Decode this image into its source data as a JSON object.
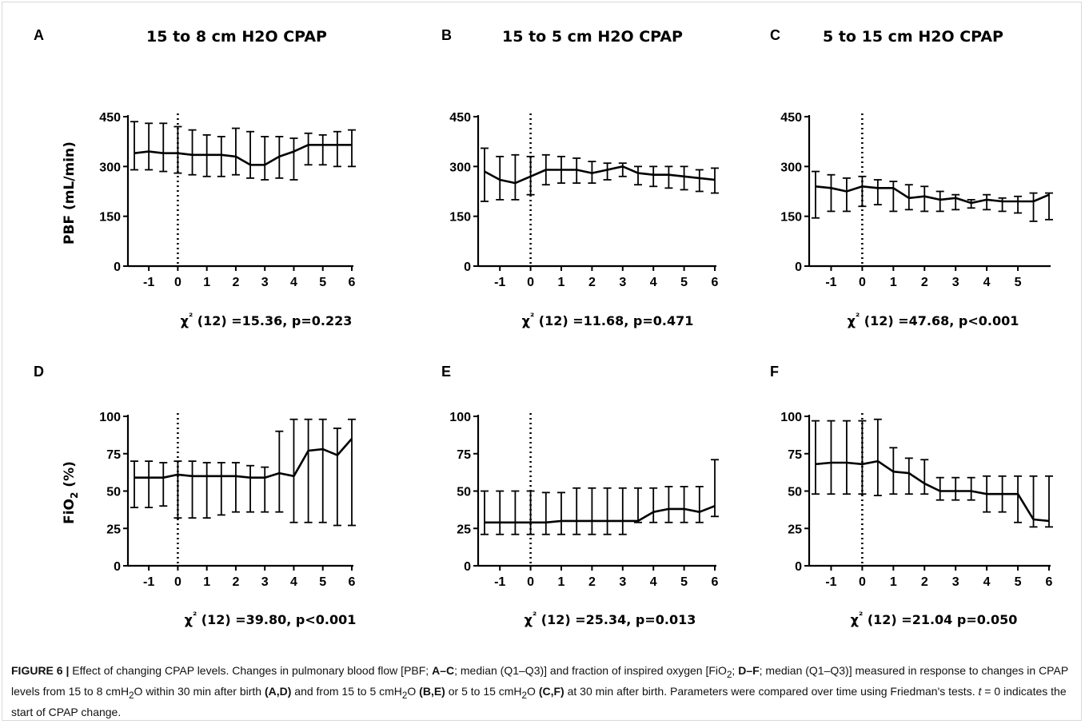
{
  "chart_data": [
    {
      "type": "line",
      "panel": "A",
      "title": "15 to 8 cm H2O CPAP",
      "ylabel": "PBF (mL/min)",
      "ylabel_sub": "",
      "ylabel_tail": "",
      "xlabel": "",
      "stat": "χ² (12) =15.36, p=0.223",
      "ylim": [
        0,
        450
      ],
      "yticks": [
        0,
        150,
        300,
        450
      ],
      "xticks": [
        -1,
        0,
        1,
        2,
        3,
        4,
        5,
        6
      ],
      "xlim": [
        -1.5,
        6
      ],
      "x": [
        -1.5,
        -1,
        -0.5,
        0,
        0.5,
        1,
        1.5,
        2,
        2.5,
        3,
        3.5,
        4,
        4.5,
        5,
        5.5,
        6
      ],
      "median": [
        340,
        345,
        340,
        340,
        335,
        335,
        335,
        330,
        305,
        305,
        330,
        345,
        365,
        365,
        365,
        365
      ],
      "q1": [
        290,
        290,
        285,
        280,
        275,
        270,
        270,
        275,
        265,
        260,
        265,
        260,
        305,
        305,
        300,
        300
      ],
      "q3": [
        435,
        430,
        430,
        420,
        410,
        395,
        390,
        415,
        405,
        390,
        390,
        385,
        400,
        395,
        405,
        410
      ],
      "vline_x": 0,
      "grid": false
    },
    {
      "type": "line",
      "panel": "B",
      "title": "15 to 5 cm H2O CPAP",
      "ylabel": "",
      "ylabel_sub": "",
      "ylabel_tail": "",
      "xlabel": "",
      "stat": "χ² (12) =11.68, p=0.471",
      "ylim": [
        0,
        450
      ],
      "yticks": [
        0,
        150,
        300,
        450
      ],
      "xticks": [
        -1,
        0,
        1,
        2,
        3,
        4,
        5,
        6
      ],
      "xlim": [
        -1.5,
        6
      ],
      "x": [
        -1.5,
        -1,
        -0.5,
        0,
        0.5,
        1,
        1.5,
        2,
        2.5,
        3,
        3.5,
        4,
        4.5,
        5,
        5.5,
        6
      ],
      "median": [
        285,
        260,
        250,
        270,
        290,
        290,
        290,
        280,
        290,
        300,
        280,
        275,
        275,
        270,
        265,
        260
      ],
      "q1": [
        195,
        200,
        200,
        215,
        245,
        250,
        250,
        250,
        260,
        270,
        245,
        240,
        235,
        230,
        225,
        220
      ],
      "q3": [
        355,
        330,
        335,
        330,
        335,
        330,
        325,
        315,
        310,
        310,
        300,
        300,
        300,
        300,
        290,
        295
      ],
      "vline_x": 0,
      "grid": false
    },
    {
      "type": "line",
      "panel": "C",
      "title": "5 to 15 cm H2O CPAP",
      "ylabel": "",
      "ylabel_sub": "",
      "ylabel_tail": "",
      "xlabel": "",
      "stat": "χ² (12) =47.68, p<0.001",
      "ylim": [
        0,
        450
      ],
      "yticks": [
        0,
        150,
        300,
        450
      ],
      "xticks": [
        -1,
        0,
        1,
        2,
        3,
        4,
        5
      ],
      "xlim": [
        -1.5,
        6
      ],
      "x": [
        -1.5,
        -1,
        -0.5,
        0,
        0.5,
        1,
        1.5,
        2,
        2.5,
        3,
        3.5,
        4,
        4.5,
        5,
        5.5,
        6
      ],
      "median": [
        240,
        235,
        225,
        240,
        235,
        235,
        205,
        210,
        200,
        205,
        190,
        200,
        195,
        195,
        195,
        215
      ],
      "q1": [
        145,
        165,
        165,
        180,
        185,
        165,
        170,
        165,
        165,
        170,
        175,
        170,
        165,
        160,
        135,
        140
      ],
      "q3": [
        285,
        275,
        265,
        270,
        260,
        255,
        245,
        240,
        225,
        215,
        200,
        215,
        205,
        210,
        220,
        220
      ],
      "vline_x": 0,
      "grid": false
    },
    {
      "type": "line",
      "panel": "D",
      "title": "",
      "ylabel": "FiO",
      "ylabel_sub": "2",
      "ylabel_tail": " (%)",
      "xlabel": "",
      "stat": "χ² (12) =39.80, p<0.001",
      "ylim": [
        0,
        100
      ],
      "yticks": [
        0,
        25,
        50,
        75,
        100
      ],
      "xticks": [
        -1,
        0,
        1,
        2,
        3,
        4,
        5,
        6
      ],
      "xlim": [
        -1.5,
        6
      ],
      "x": [
        -1.5,
        -1,
        -0.5,
        0,
        0.5,
        1,
        1.5,
        2,
        2.5,
        3,
        3.5,
        4,
        4.5,
        5,
        5.5,
        6
      ],
      "median": [
        59,
        59,
        59,
        61,
        60,
        60,
        60,
        60,
        59,
        59,
        62,
        60,
        77,
        78,
        74,
        85
      ],
      "q1": [
        39,
        39,
        40,
        32,
        32,
        32,
        34,
        36,
        36,
        36,
        36,
        29,
        29,
        29,
        27,
        27
      ],
      "q3": [
        70,
        70,
        69,
        70,
        70,
        69,
        69,
        69,
        67,
        66,
        90,
        98,
        98,
        98,
        92,
        98
      ],
      "vline_x": 0,
      "grid": false
    },
    {
      "type": "line",
      "panel": "E",
      "title": "",
      "ylabel": "",
      "ylabel_sub": "",
      "ylabel_tail": "",
      "xlabel": "",
      "stat": "χ² (12) =25.34, p=0.013",
      "ylim": [
        0,
        100
      ],
      "yticks": [
        0,
        25,
        50,
        75,
        100
      ],
      "xticks": [
        -1,
        0,
        1,
        2,
        3,
        4,
        5,
        6
      ],
      "xlim": [
        -1.5,
        6
      ],
      "x": [
        -1.5,
        -1,
        -0.5,
        0,
        0.5,
        1,
        1.5,
        2,
        2.5,
        3,
        3.5,
        4,
        4.5,
        5,
        5.5,
        6
      ],
      "median": [
        29,
        29,
        29,
        29,
        29,
        30,
        30,
        30,
        30,
        30,
        30,
        36,
        38,
        38,
        36,
        40
      ],
      "q1": [
        21,
        21,
        21,
        21,
        21,
        21,
        21,
        21,
        21,
        21,
        29,
        29,
        29,
        29,
        29,
        33
      ],
      "q3": [
        50,
        50,
        50,
        50,
        49,
        49,
        52,
        52,
        52,
        52,
        52,
        52,
        53,
        53,
        53,
        71
      ],
      "vline_x": 0,
      "grid": false
    },
    {
      "type": "line",
      "panel": "F",
      "title": "",
      "ylabel": "",
      "ylabel_sub": "",
      "ylabel_tail": "",
      "xlabel": "",
      "stat": "χ² (12) =21.04 p=0.050",
      "ylim": [
        0,
        100
      ],
      "yticks": [
        0,
        25,
        50,
        75,
        100
      ],
      "xticks": [
        -1,
        0,
        1,
        2,
        3,
        4,
        5,
        6
      ],
      "xlim": [
        -1.5,
        6
      ],
      "x": [
        -1.5,
        -1,
        -0.5,
        0,
        0.5,
        1,
        1.5,
        2,
        2.5,
        3,
        3.5,
        4,
        4.5,
        5,
        5.5,
        6
      ],
      "median": [
        68,
        69,
        69,
        68,
        70,
        63,
        62,
        55,
        50,
        50,
        50,
        48,
        48,
        48,
        31,
        30
      ],
      "q1": [
        48,
        48,
        48,
        48,
        47,
        48,
        48,
        48,
        44,
        44,
        44,
        36,
        36,
        29,
        26,
        26
      ],
      "q3": [
        97,
        97,
        97,
        97,
        98,
        79,
        72,
        71,
        59,
        59,
        59,
        60,
        60,
        60,
        60,
        60
      ],
      "vline_x": 0,
      "grid": false
    }
  ],
  "caption": {
    "label": "FIGURE 6 |",
    "text_1": " Effect of changing CPAP levels. Changes in pulmonary blood flow [PBF; ",
    "ref_1": "A–C",
    "text_2": "; median (Q1–Q3)] and fraction of inspired oxygen [FiO",
    "sub_1": "2",
    "text_3": "; ",
    "ref_2": "D–F",
    "text_4": "; median (Q1–Q3)] measured in response to changes in CPAP levels from 15 to 8 cmH",
    "sub_2": "2",
    "text_5": "O within 30 min after birth ",
    "ref_3": "(A,D)",
    "text_6": " and from 15 to 5 cmH",
    "sub_3": "2",
    "text_7": "O ",
    "ref_4": "(B,E)",
    "text_8": " or 5 to 15 cmH",
    "sub_4": "2",
    "text_9": "O ",
    "ref_5": "(C,F)",
    "text_10": " at 30 min after birth. Parameters were compared over time using Friedman's tests. ",
    "italic_t": "t",
    "text_11": " = 0 indicates the start of CPAP change."
  }
}
